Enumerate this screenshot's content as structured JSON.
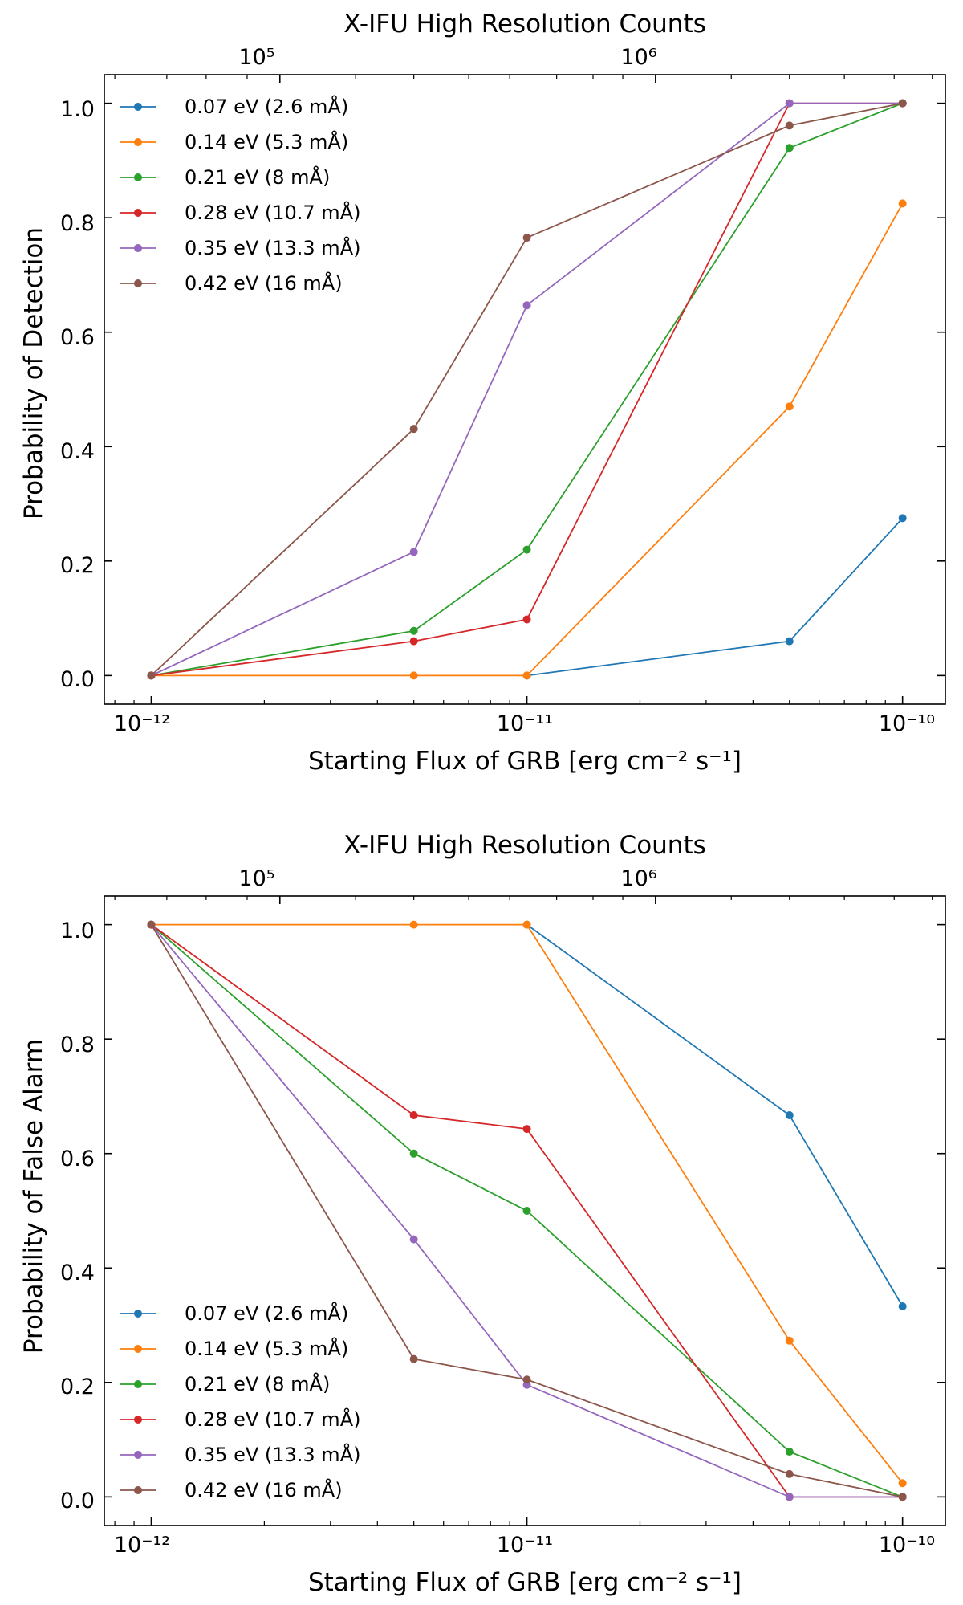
{
  "chart_data": [
    {
      "type": "line",
      "title": "X-IFU High Resolution Counts",
      "xlabel": "Starting Flux of GRB [erg cm⁻² s⁻¹]",
      "ylabel": "Probability of Detection",
      "xscale": "log",
      "xlim": [
        7.5e-13,
        1.3e-10
      ],
      "ylim": [
        -0.05,
        1.05
      ],
      "grid": false,
      "legend_position": "top-left",
      "x": [
        1e-12,
        5e-12,
        1e-11,
        5e-11,
        1e-10
      ],
      "x_tick_labels": [
        "10⁻¹²",
        "10⁻¹¹",
        "10⁻¹⁰"
      ],
      "y_tick_labels": [
        "0.0",
        "0.2",
        "0.4",
        "0.6",
        "0.8",
        "1.0"
      ],
      "top_axis": {
        "tick_labels": [
          "10⁵",
          "10⁶"
        ],
        "tick_positions_flux": [
          2.2e-12,
          2.2e-11
        ]
      },
      "series": [
        {
          "name": "0.07 eV (2.6 mÅ)",
          "color": "#1f77b4",
          "values": [
            null,
            null,
            0.0,
            0.06,
            0.275
          ]
        },
        {
          "name": "0.14 eV (5.3 mÅ)",
          "color": "#ff7f0e",
          "values": [
            0.0,
            0.0,
            0.0,
            0.47,
            0.825
          ]
        },
        {
          "name": "0.21 eV (8 mÅ)",
          "color": "#2ca02c",
          "values": [
            0.0,
            0.078,
            0.22,
            0.922,
            1.0
          ]
        },
        {
          "name": "0.28 eV (10.7 mÅ)",
          "color": "#d62728",
          "values": [
            0.0,
            0.06,
            0.098,
            1.0,
            1.0
          ]
        },
        {
          "name": "0.35 eV (13.3 mÅ)",
          "color": "#9467bd",
          "values": [
            0.0,
            0.216,
            0.647,
            1.0,
            1.0
          ]
        },
        {
          "name": "0.42 eV (16 mÅ)",
          "color": "#8c564b",
          "values": [
            0.0,
            0.431,
            0.765,
            0.961,
            1.0
          ]
        }
      ]
    },
    {
      "type": "line",
      "title": "X-IFU High Resolution Counts",
      "xlabel": "Starting Flux of GRB [erg cm⁻² s⁻¹]",
      "ylabel": "Probability of False Alarm",
      "xscale": "log",
      "xlim": [
        7.5e-13,
        1.3e-10
      ],
      "ylim": [
        -0.05,
        1.05
      ],
      "grid": false,
      "legend_position": "bottom-left",
      "x": [
        1e-12,
        5e-12,
        1e-11,
        5e-11,
        1e-10
      ],
      "x_tick_labels": [
        "10⁻¹²",
        "10⁻¹¹",
        "10⁻¹⁰"
      ],
      "y_tick_labels": [
        "0.0",
        "0.2",
        "0.4",
        "0.6",
        "0.8",
        "1.0"
      ],
      "top_axis": {
        "tick_labels": [
          "10⁵",
          "10⁶"
        ],
        "tick_positions_flux": [
          2.2e-12,
          2.2e-11
        ]
      },
      "series": [
        {
          "name": "0.07 eV (2.6 mÅ)",
          "color": "#1f77b4",
          "values": [
            null,
            null,
            1.0,
            0.667,
            0.333
          ]
        },
        {
          "name": "0.14 eV (5.3 mÅ)",
          "color": "#ff7f0e",
          "values": [
            1.0,
            1.0,
            1.0,
            0.273,
            0.024
          ]
        },
        {
          "name": "0.21 eV (8 mÅ)",
          "color": "#2ca02c",
          "values": [
            1.0,
            0.6,
            0.5,
            0.079,
            0.0
          ]
        },
        {
          "name": "0.28 eV (10.7 mÅ)",
          "color": "#d62728",
          "values": [
            1.0,
            0.667,
            0.643,
            0.0,
            0.0
          ]
        },
        {
          "name": "0.35 eV (13.3 mÅ)",
          "color": "#9467bd",
          "values": [
            1.0,
            0.45,
            0.196,
            0.0,
            0.0
          ]
        },
        {
          "name": "0.42 eV (16 mÅ)",
          "color": "#8c564b",
          "values": [
            1.0,
            0.241,
            0.205,
            0.04,
            0.0
          ]
        }
      ]
    }
  ]
}
